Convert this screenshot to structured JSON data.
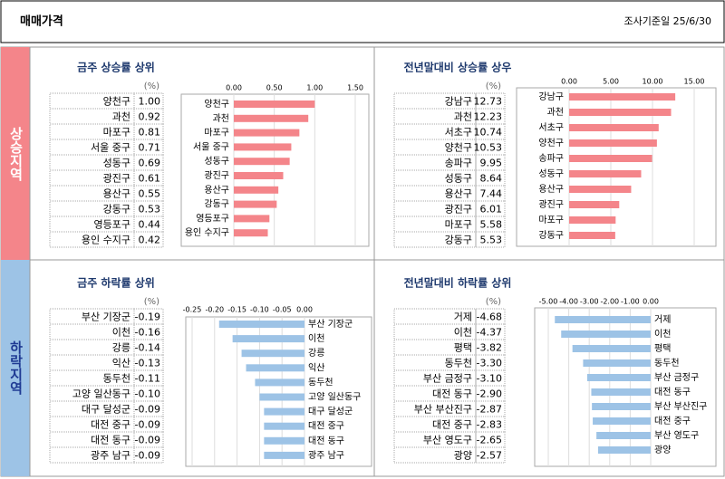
{
  "header": {
    "title": "매매가격",
    "date_label": "조사기준일 25/6/30"
  },
  "sections": [
    "상승지역",
    "하락지역"
  ],
  "chart_data": [
    {
      "type": "bar",
      "title": "금주 상승률 상위",
      "unit": "(%)",
      "color": "#f4858a",
      "categories": [
        "양천구",
        "과천",
        "마포구",
        "서울 중구",
        "성동구",
        "광진구",
        "용산구",
        "강동구",
        "영등포구",
        "용인 수지구"
      ],
      "values": [
        1.0,
        0.92,
        0.81,
        0.71,
        0.69,
        0.61,
        0.55,
        0.53,
        0.44,
        0.42
      ],
      "value_labels": [
        "1.00",
        "0.92",
        "0.81",
        "0.71",
        "0.69",
        "0.61",
        "0.55",
        "0.53",
        "0.44",
        "0.42"
      ],
      "xlim": [
        0,
        1.5
      ],
      "xticks": [
        {
          "value": 0,
          "label": "0.00"
        },
        {
          "value": 0.5,
          "label": "0.50"
        },
        {
          "value": 1,
          "label": "1.00"
        },
        {
          "value": 1.5,
          "label": "1.50"
        }
      ]
    },
    {
      "type": "bar",
      "title": "전년말대비 상승률 상우",
      "unit": "(%)",
      "color": "#f4858a",
      "categories": [
        "강남구",
        "과천",
        "서초구",
        "양천구",
        "송파구",
        "성동구",
        "용산구",
        "광진구",
        "마포구",
        "강동구"
      ],
      "values": [
        12.73,
        12.23,
        10.74,
        10.53,
        9.95,
        8.64,
        7.44,
        6.01,
        5.58,
        5.53
      ],
      "value_labels": [
        "12.73",
        "12.23",
        "10.74",
        "10.53",
        "9.95",
        "8.64",
        "7.44",
        "6.01",
        "5.58",
        "5.53"
      ],
      "xlim": [
        0,
        15
      ],
      "xticks": [
        {
          "value": 0,
          "label": "0.00"
        },
        {
          "value": 5,
          "label": "5.00"
        },
        {
          "value": 10,
          "label": "10.00"
        },
        {
          "value": 15,
          "label": "15.00"
        }
      ]
    },
    {
      "type": "bar",
      "title": "금주 하락률 상위",
      "unit": "(%)",
      "color": "#9dc3e6",
      "categories": [
        "부산 기장군",
        "이천",
        "강릉",
        "익산",
        "동두천",
        "고양 일산동구",
        "대구 달성군",
        "대전 중구",
        "대전 동구",
        "광주 남구"
      ],
      "values": [
        -0.19,
        -0.16,
        -0.14,
        -0.13,
        -0.11,
        -0.1,
        -0.09,
        -0.09,
        -0.09,
        -0.09
      ],
      "value_labels": [
        "-0.19",
        "-0.16",
        "-0.14",
        "-0.13",
        "-0.11",
        "-0.10",
        "-0.09",
        "-0.09",
        "-0.09",
        "-0.09"
      ],
      "xlim": [
        -0.25,
        0
      ],
      "xticks": [
        {
          "value": -0.25,
          "label": "-0.25"
        },
        {
          "value": -0.2,
          "label": "-0.20"
        },
        {
          "value": -0.15,
          "label": "-0.15"
        },
        {
          "value": -0.1,
          "label": "-0.10"
        },
        {
          "value": -0.05,
          "label": "-0.05"
        },
        {
          "value": 0,
          "label": "0.00"
        }
      ]
    },
    {
      "type": "bar",
      "title": "전년말대비 하락률 상위",
      "unit": "(%)",
      "color": "#9dc3e6",
      "categories": [
        "거제",
        "이천",
        "평택",
        "동두천",
        "부산 금정구",
        "대전 동구",
        "부산 부산진구",
        "대전 중구",
        "부산 영도구",
        "광양"
      ],
      "values": [
        -4.68,
        -4.37,
        -3.82,
        -3.3,
        -3.1,
        -2.9,
        -2.87,
        -2.83,
        -2.65,
        -2.57
      ],
      "value_labels": [
        "-4.68",
        "-4.37",
        "-3.82",
        "-3.30",
        "-3.10",
        "-2.90",
        "-2.87",
        "-2.83",
        "-2.65",
        "-2.57"
      ],
      "xlim": [
        -5,
        0
      ],
      "xticks": [
        {
          "value": -5,
          "label": "-5.00"
        },
        {
          "value": -4,
          "label": "-4.00"
        },
        {
          "value": -3,
          "label": "-3.00"
        },
        {
          "value": -2,
          "label": "-2.00"
        },
        {
          "value": -1,
          "label": "-1.00"
        },
        {
          "value": 0,
          "label": "0.00"
        }
      ]
    }
  ]
}
